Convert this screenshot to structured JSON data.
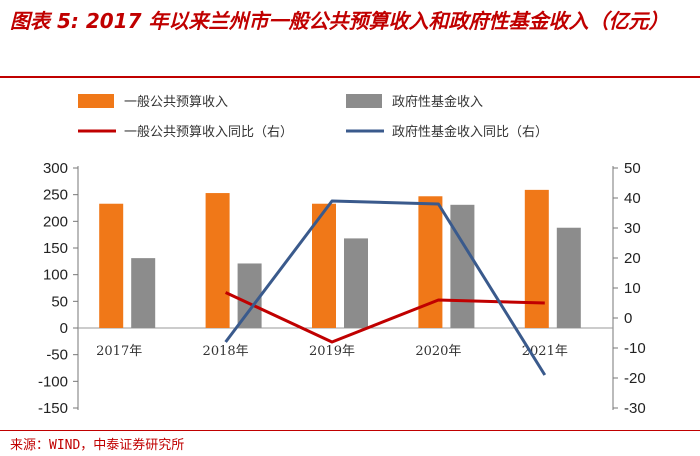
{
  "title": {
    "text": "图表 5: 2017 年以来兰州市一般公共预算收入和政府性基金收入（亿元）"
  },
  "source": "来源：WIND，中泰证券研究所",
  "chart_data": {
    "type": "bar",
    "categories": [
      "2017年",
      "2018年",
      "2019年",
      "2020年",
      "2021年"
    ],
    "series": [
      {
        "name": "一般公共预算收入",
        "type": "bar",
        "axis": "left",
        "color": "#f07818",
        "values": [
          233,
          253,
          233,
          247,
          259
        ]
      },
      {
        "name": "政府性基金收入",
        "type": "bar",
        "axis": "left",
        "color": "#8c8c8c",
        "values": [
          131,
          121,
          168,
          231,
          188
        ]
      },
      {
        "name": "一般公共预算收入同比（右）",
        "type": "line",
        "axis": "right",
        "color": "#c00000",
        "values": [
          null,
          8.5,
          -8,
          6,
          5
        ]
      },
      {
        "name": "政府性基金收入同比（右）",
        "type": "line",
        "axis": "right",
        "color": "#3a5a8c",
        "values": [
          null,
          -8,
          39,
          38,
          -19
        ]
      }
    ],
    "y_left": {
      "min": -150,
      "max": 300,
      "ticks": [
        300,
        250,
        200,
        150,
        100,
        50,
        0,
        -50,
        -100,
        -150
      ]
    },
    "y_right": {
      "min": -30,
      "max": 50,
      "ticks": [
        50,
        40,
        30,
        20,
        10,
        0,
        -10,
        -20,
        -30
      ]
    },
    "legend": [
      {
        "label": "一般公共预算收入",
        "kind": "box",
        "color": "#f07818"
      },
      {
        "label": "政府性基金收入",
        "kind": "box",
        "color": "#8c8c8c"
      },
      {
        "label": "一般公共预算收入同比（右）",
        "kind": "line",
        "color": "#c00000"
      },
      {
        "label": "政府性基金收入同比（右）",
        "kind": "line",
        "color": "#3a5a8c"
      }
    ]
  }
}
